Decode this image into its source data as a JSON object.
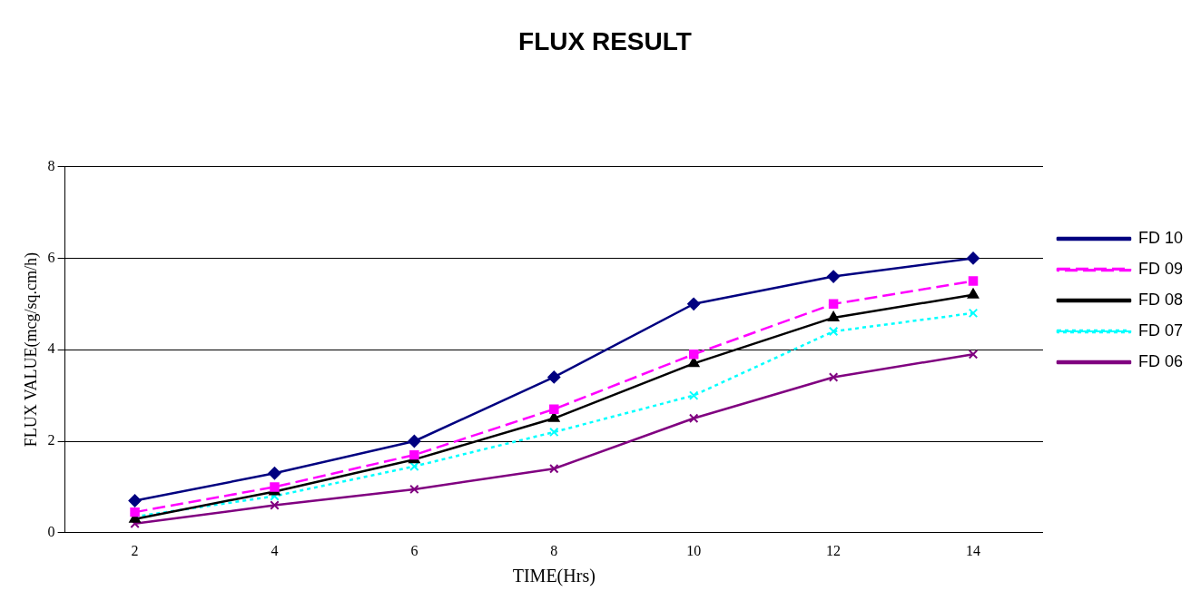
{
  "chart_data": {
    "type": "line",
    "title": "FLUX RESULT",
    "xlabel": "TIME(Hrs)",
    "ylabel": "FLUX VALUE(mcg/sq.cm/h)",
    "categories": [
      "2",
      "4",
      "6",
      "8",
      "10",
      "12",
      "14"
    ],
    "ylim": [
      0,
      8
    ],
    "yticks": [
      0,
      2,
      4,
      6,
      8
    ],
    "grid": "y",
    "legend": "right",
    "series": [
      {
        "name": "FD 10",
        "color": "#000080",
        "marker": "diamond",
        "line_style": "solid",
        "values": [
          0.7,
          1.3,
          2.0,
          3.4,
          5.0,
          5.6,
          6.0
        ]
      },
      {
        "name": "FD 09",
        "color": "#ff00ff",
        "marker": "square",
        "line_style": "dashed",
        "values": [
          0.45,
          1.0,
          1.7,
          2.7,
          3.9,
          5.0,
          5.5
        ]
      },
      {
        "name": "FD 08",
        "color": "#000000",
        "marker": "triangle",
        "line_style": "solid",
        "values": [
          0.3,
          0.9,
          1.6,
          2.5,
          3.7,
          4.7,
          5.2
        ]
      },
      {
        "name": "FD 07",
        "color": "#00ffff",
        "marker": "cross",
        "line_style": "dotted",
        "values": [
          0.35,
          0.8,
          1.45,
          2.2,
          3.0,
          4.4,
          4.8
        ]
      },
      {
        "name": "FD 06",
        "color": "#800080",
        "marker": "cross",
        "line_style": "solid",
        "values": [
          0.2,
          0.6,
          0.95,
          1.4,
          2.5,
          3.4,
          3.9
        ]
      }
    ]
  }
}
